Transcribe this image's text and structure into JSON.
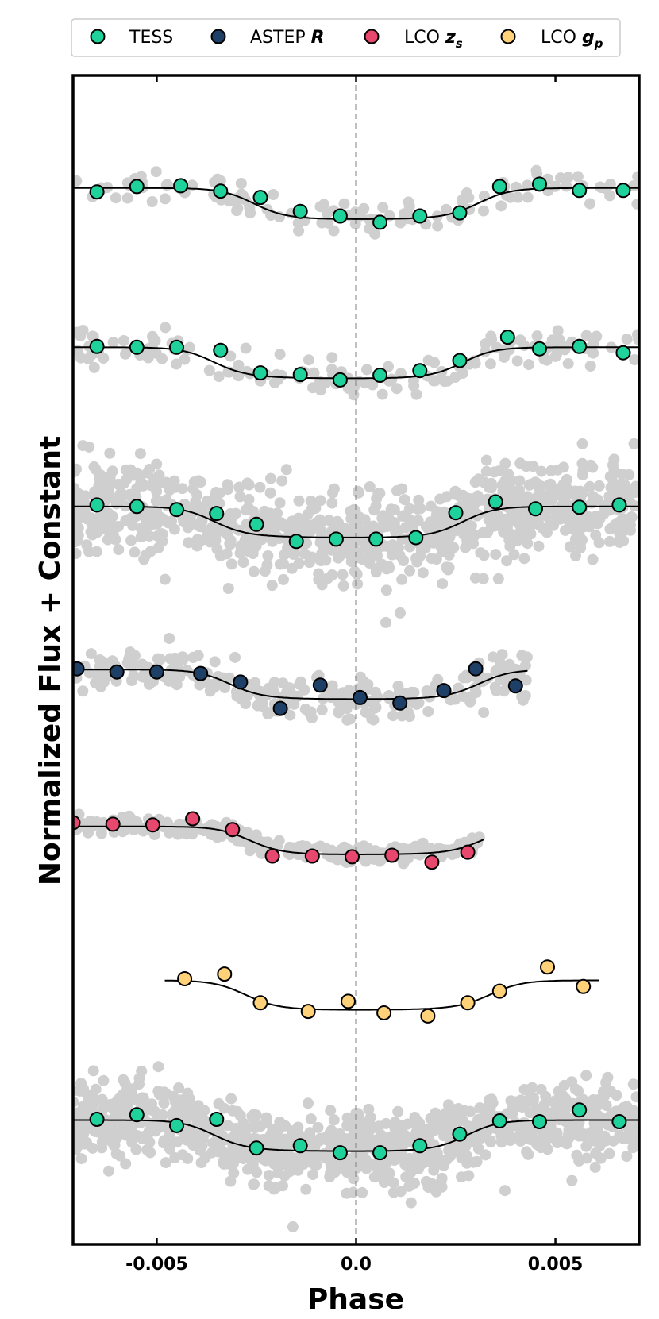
{
  "chart_data": {
    "type": "scatter",
    "title": "",
    "xlabel": "Phase",
    "ylabel": "Normalized Flux + Constant",
    "xlim": [
      -0.0071,
      0.0071
    ],
    "ylim": [
      0,
      15.05
    ],
    "xticks": [
      -0.005,
      0.0,
      0.005
    ],
    "xtick_labels": [
      "-0.005",
      "0.0",
      "0.005"
    ],
    "legend": {
      "position": "top-center",
      "entries": [
        {
          "label": "TESS",
          "style": "plain",
          "color": "#1fd19b"
        },
        {
          "label": "ASTEP",
          "style_suffix": "R",
          "color": "#1e3f66"
        },
        {
          "label": "LCO",
          "style_suffix": "z",
          "subscript": "s",
          "color": "#e8486e"
        },
        {
          "label": "LCO",
          "style_suffix": "g",
          "subscript": "p",
          "color": "#ffd27a"
        }
      ]
    },
    "colors": {
      "raw_points": "#cfcfcf",
      "model": "#000000",
      "marker_edge": "#000000",
      "midtransit_line": "#808080"
    },
    "midtransit_phase": 0.0,
    "series": [
      {
        "name": "TESS",
        "instrument": "TESS",
        "color": "#1fd19b",
        "baseline": 13.6,
        "depth": 0.4,
        "ingress_phase": -0.0026,
        "egress_phase": 0.0031,
        "model_x_range": [
          -0.0071,
          0.0071
        ],
        "scatter_sigma": 0.22,
        "scatter_count": 120,
        "x": [
          -0.0065,
          -0.0055,
          -0.0044,
          -0.0034,
          -0.0024,
          -0.0014,
          -0.0004,
          0.0006,
          0.0016,
          0.0026,
          0.0036,
          0.0046,
          0.0056,
          0.0067
        ],
        "y": [
          13.55,
          13.62,
          13.63,
          13.56,
          13.48,
          13.3,
          13.24,
          13.16,
          13.24,
          13.28,
          13.62,
          13.65,
          13.57,
          13.57
        ]
      },
      {
        "name": "TESS",
        "instrument": "TESS",
        "color": "#1fd19b",
        "baseline": 11.55,
        "depth": 0.4,
        "ingress_phase": -0.0036,
        "egress_phase": 0.0027,
        "model_x_range": [
          -0.0071,
          0.0071
        ],
        "scatter_sigma": 0.25,
        "scatter_count": 150,
        "x": [
          -0.0065,
          -0.0055,
          -0.0045,
          -0.0034,
          -0.0024,
          -0.0014,
          -0.0004,
          0.0006,
          0.0016,
          0.0026,
          0.0038,
          0.0046,
          0.0056,
          0.0067
        ],
        "y": [
          11.56,
          11.55,
          11.55,
          11.51,
          11.22,
          11.2,
          11.13,
          11.19,
          11.25,
          11.38,
          11.68,
          11.53,
          11.56,
          11.48
        ]
      },
      {
        "name": "TESS",
        "instrument": "TESS",
        "color": "#1fd19b",
        "baseline": 9.5,
        "depth": 0.4,
        "ingress_phase": -0.0036,
        "egress_phase": 0.0027,
        "model_x_range": [
          -0.0071,
          0.0071
        ],
        "scatter_sigma": 0.55,
        "scatter_count": 900,
        "x": [
          -0.0065,
          -0.0055,
          -0.0045,
          -0.0035,
          -0.0025,
          -0.0015,
          -0.0005,
          0.0005,
          0.0015,
          0.0025,
          0.0035,
          0.0045,
          0.0056,
          0.0066
        ],
        "y": [
          9.52,
          9.5,
          9.46,
          9.41,
          9.27,
          9.05,
          9.08,
          9.08,
          9.1,
          9.42,
          9.56,
          9.47,
          9.49,
          9.52
        ]
      },
      {
        "name": "ASTEP R",
        "instrument": "ASTEP",
        "color": "#1e3f66",
        "baseline": 7.4,
        "depth": 0.38,
        "ingress_phase": -0.0032,
        "egress_phase": 0.0031,
        "model_x_range": [
          -0.0071,
          0.0043
        ],
        "scatter_sigma": 0.28,
        "scatter_count": 260,
        "x": [
          -0.007,
          -0.006,
          -0.005,
          -0.0039,
          -0.0029,
          -0.0019,
          -0.0009,
          0.0001,
          0.0011,
          0.0022,
          0.003,
          0.004
        ],
        "y": [
          7.41,
          7.37,
          7.37,
          7.35,
          7.24,
          6.9,
          7.2,
          7.04,
          6.97,
          7.13,
          7.41,
          7.19
        ]
      },
      {
        "name": "LCO zs",
        "instrument": "LCO z",
        "color": "#e8486e",
        "baseline": 5.38,
        "depth": 0.36,
        "ingress_phase": -0.0027,
        "egress_phase": 0.0032,
        "model_x_range": [
          -0.0071,
          0.0032
        ],
        "scatter_sigma": 0.11,
        "scatter_count": 300,
        "x": [
          -0.0071,
          -0.0061,
          -0.0051,
          -0.0041,
          -0.0031,
          -0.0021,
          -0.0011,
          -0.0001,
          0.0009,
          0.0019,
          0.0028
        ],
        "y": [
          5.43,
          5.41,
          5.4,
          5.48,
          5.34,
          5.0,
          5.0,
          4.99,
          5.01,
          4.92,
          5.05
        ]
      },
      {
        "name": "LCO gp",
        "instrument": "LCO g",
        "color": "#ffd27a",
        "baseline": 3.4,
        "depth": 0.38,
        "ingress_phase": -0.0028,
        "egress_phase": 0.0034,
        "model_x_range": [
          -0.0048,
          0.0061
        ],
        "scatter_sigma": 0.0,
        "scatter_count": 0,
        "x": [
          -0.0043,
          -0.0033,
          -0.0024,
          -0.0012,
          -0.0002,
          0.0007,
          0.0018,
          0.0028,
          0.0036,
          0.0048,
          0.0057
        ],
        "y": [
          3.42,
          3.48,
          3.11,
          3.0,
          3.13,
          2.98,
          2.94,
          3.11,
          3.26,
          3.57,
          3.32
        ]
      },
      {
        "name": "TESS",
        "instrument": "TESS",
        "color": "#1fd19b",
        "baseline": 1.6,
        "depth": 0.4,
        "ingress_phase": -0.0036,
        "egress_phase": 0.0028,
        "model_x_range": [
          -0.0071,
          0.0071
        ],
        "scatter_sigma": 0.48,
        "scatter_count": 1000,
        "x": [
          -0.0065,
          -0.0055,
          -0.0045,
          -0.0035,
          -0.0025,
          -0.0014,
          -0.0004,
          0.0006,
          0.0016,
          0.0026,
          0.0036,
          0.0046,
          0.0056,
          0.0066
        ],
        "y": [
          1.61,
          1.67,
          1.53,
          1.61,
          1.24,
          1.27,
          1.18,
          1.18,
          1.27,
          1.42,
          1.59,
          1.58,
          1.73,
          1.58
        ]
      }
    ]
  }
}
